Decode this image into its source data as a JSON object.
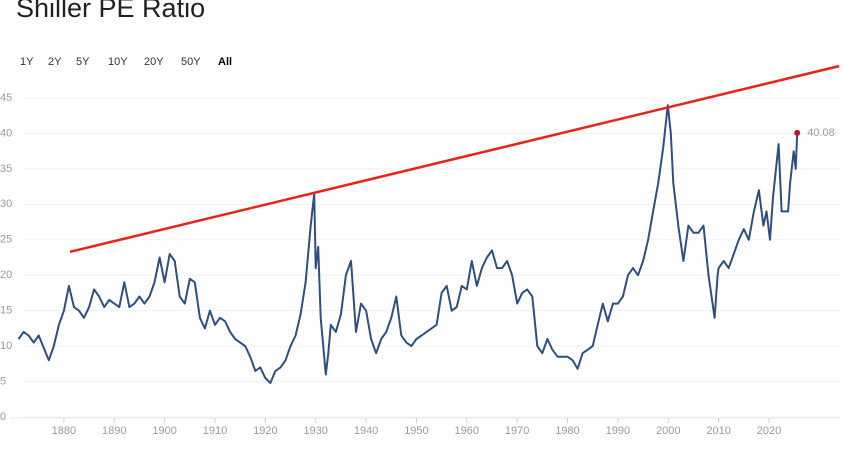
{
  "chart_data": {
    "type": "line",
    "title": "Shiller PE Ratio",
    "range_buttons": [
      "1Y",
      "2Y",
      "5Y",
      "10Y",
      "20Y",
      "50Y",
      "All"
    ],
    "active_button": 6,
    "xlim": [
      1869.3,
      2034.1
    ],
    "ylim": [
      0,
      45
    ],
    "xticks": [
      1880,
      1890,
      1900,
      1910,
      1920,
      1930,
      1940,
      1950,
      1960,
      1970,
      1980,
      1990,
      2000,
      2010,
      2020
    ],
    "yticks": [
      0,
      5,
      10,
      15,
      20,
      25,
      30,
      35,
      40,
      45
    ],
    "grid": true,
    "x": [
      1871,
      1872,
      1873,
      1874,
      1875,
      1877,
      1878,
      1879,
      1880,
      1881,
      1882,
      1883,
      1884,
      1885,
      1886,
      1887,
      1888,
      1889,
      1890,
      1891,
      1892,
      1893,
      1894,
      1895,
      1896,
      1897,
      1898,
      1899,
      1900,
      1901,
      1902,
      1903,
      1904,
      1905,
      1906,
      1907,
      1908,
      1909,
      1910,
      1911,
      1912,
      1913,
      1914,
      1915,
      1916,
      1917,
      1918,
      1919,
      1920,
      1921,
      1922,
      1923,
      1924,
      1925,
      1926,
      1927,
      1928,
      1929,
      1929.7,
      1930,
      1930.5,
      1931,
      1932,
      1932.5,
      1933,
      1934,
      1935,
      1936,
      1937,
      1938,
      1939,
      1940,
      1941,
      1942,
      1943,
      1944,
      1945,
      1946,
      1947,
      1948,
      1949,
      1950,
      1951,
      1952,
      1953,
      1954,
      1955,
      1956,
      1957,
      1958,
      1959,
      1960,
      1961,
      1962,
      1963,
      1964,
      1965,
      1966,
      1967,
      1968,
      1969,
      1970,
      1971,
      1972,
      1973,
      1974,
      1975,
      1976,
      1977,
      1978,
      1979,
      1980,
      1981,
      1982,
      1983,
      1984,
      1985,
      1986,
      1987,
      1988,
      1989,
      1990,
      1991,
      1992,
      1993,
      1994,
      1995,
      1996,
      1997,
      1998,
      1999,
      1999.9,
      2000.5,
      2001,
      2002,
      2003,
      2004,
      2005,
      2006,
      2007,
      2008,
      2009.2,
      2009.8,
      2010,
      2011,
      2012,
      2013,
      2014,
      2015,
      2016,
      2017,
      2018,
      2018.9,
      2019.5,
      2020.2,
      2020.8,
      2021.9,
      2022.5,
      2023,
      2023.8,
      2024.2,
      2024.9,
      2025.3,
      2025.6
    ],
    "series": [
      {
        "name": "Shiller PE",
        "color": "#2d5080",
        "values": [
          11,
          12,
          11.5,
          10.5,
          11.5,
          8,
          10,
          13,
          15,
          18.5,
          15.5,
          15,
          14,
          15.5,
          18,
          17,
          15.5,
          16.5,
          16,
          15.5,
          19,
          15.5,
          16,
          17,
          16,
          17,
          19,
          22.5,
          19,
          23,
          22,
          17,
          16,
          19.5,
          19,
          14,
          12.5,
          15,
          13,
          14,
          13.5,
          12,
          11,
          10.5,
          10,
          8.5,
          6.5,
          7,
          5.5,
          4.8,
          6.5,
          7,
          8,
          10,
          11.5,
          14.5,
          19,
          27,
          31.5,
          21,
          24,
          14,
          6,
          9,
          13,
          12,
          14.5,
          20,
          22,
          12,
          16,
          15,
          11,
          9,
          11,
          12,
          14,
          17,
          11.5,
          10.5,
          10,
          11,
          11.5,
          12,
          12.5,
          13,
          17.5,
          18.5,
          15,
          15.5,
          18.5,
          18,
          22,
          18.5,
          21,
          22.5,
          23.5,
          21,
          21,
          22,
          20,
          16,
          17.5,
          18,
          17,
          10,
          9,
          11,
          9.5,
          8.5,
          8.5,
          8.5,
          8,
          6.8,
          9,
          9.5,
          10,
          13,
          16,
          13.5,
          16,
          16,
          17,
          20,
          21,
          20,
          22,
          25,
          29,
          33,
          38,
          44,
          40,
          33,
          27,
          22,
          27,
          26,
          26,
          27,
          20,
          14,
          20,
          21,
          22,
          21,
          23,
          25,
          26.5,
          25,
          29,
          32,
          27,
          29,
          25,
          31,
          38.5,
          29,
          29,
          29,
          33,
          37.5,
          35,
          40.08
        ]
      }
    ],
    "trend_line": {
      "color": "#e8231a",
      "x": [
        1881.2,
        2033.9
      ],
      "y": [
        23.3,
        49.5
      ]
    }
  }
}
